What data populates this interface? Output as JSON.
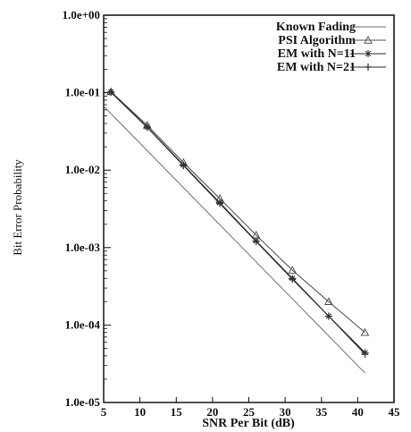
{
  "chart_data": {
    "type": "line",
    "xlabel": "SNR Per Bit (dB)",
    "ylabel": "Bit Error Probability",
    "xlim": [
      5,
      45
    ],
    "ylim": [
      1e-05,
      1
    ],
    "yscale": "log",
    "x_ticks": [
      "5",
      "10",
      "15",
      "20",
      "25",
      "30",
      "35",
      "40",
      "45"
    ],
    "y_ticks": [
      "1.0e+00",
      "1.0e-01",
      "1.0e-02",
      "1.0e-03",
      "1.0e-04",
      "1.0e-05"
    ],
    "legend_position": "top-right",
    "series": [
      {
        "name": "Known Fading",
        "x": [
          5,
          41
        ],
        "y": [
          0.067,
          2.4e-05
        ],
        "marker": "none",
        "color": "#707070"
      },
      {
        "name": "PSI Algorithm",
        "x": [
          6,
          11,
          16,
          21,
          26,
          31,
          36,
          41
        ],
        "y": [
          0.103,
          0.038,
          0.0125,
          0.0043,
          0.00145,
          0.00051,
          0.0002,
          8e-05
        ],
        "marker": "triangle",
        "color": "#555555"
      },
      {
        "name": "EM with N=11",
        "x": [
          6,
          11,
          16,
          21,
          26,
          31,
          36,
          41
        ],
        "y": [
          0.102,
          0.036,
          0.0116,
          0.0038,
          0.00122,
          0.0004,
          0.00013,
          4.4e-05
        ],
        "marker": "star",
        "color": "#222222"
      },
      {
        "name": "EM with N=21",
        "x": [
          6,
          11,
          16,
          21,
          26,
          31,
          36,
          41
        ],
        "y": [
          0.101,
          0.0355,
          0.0114,
          0.0037,
          0.0012,
          0.00039,
          0.00013,
          4.2e-05
        ],
        "marker": "plus",
        "color": "#333333"
      }
    ]
  }
}
